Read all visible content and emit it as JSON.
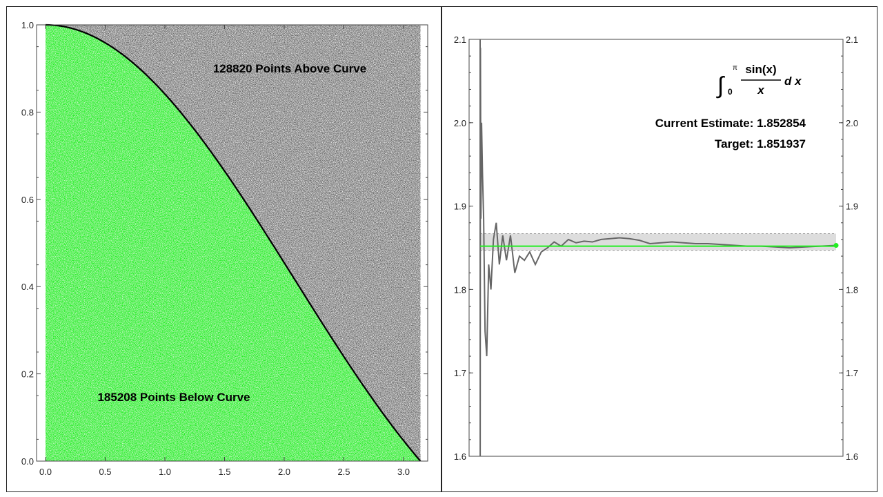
{
  "chart_data": [
    {
      "type": "scatter",
      "function": "sin(x)/x",
      "xlim": [
        0,
        3.14159
      ],
      "ylim": [
        0,
        1
      ],
      "xticks": [
        "0.0",
        "0.5",
        "1.0",
        "1.5",
        "2.0",
        "2.5",
        "3.0"
      ],
      "yticks": [
        "0.0",
        "0.2",
        "0.4",
        "0.6",
        "0.8",
        "1.0"
      ],
      "above_label": "128820 Points Above Curve",
      "below_label": "185208 Points Below Curve",
      "colors": {
        "above": "#6e6e6e",
        "below": "#22ee22",
        "curve": "#000000"
      }
    },
    {
      "type": "line",
      "ylim": [
        1.6,
        2.1
      ],
      "yticks": [
        "1.6",
        "1.7",
        "1.8",
        "1.9",
        "2.0",
        "2.1"
      ],
      "formula": {
        "integral_upper": "π",
        "integral_lower": "0",
        "numerator": "sin(x)",
        "denominator": "x",
        "differential": "d x"
      },
      "estimate_label": "Current Estimate: 1.852854",
      "target_label": "Target: 1.851937",
      "target": 1.851937,
      "current_estimate": 1.852854,
      "band": [
        1.847,
        1.867
      ],
      "series": [
        2.3,
        1.55,
        2.09,
        1.885,
        2.0,
        1.94,
        1.885,
        1.75,
        1.72,
        1.83,
        1.8,
        1.86,
        1.88,
        1.83,
        1.865,
        1.835,
        1.865,
        1.82,
        1.84,
        1.835,
        1.845,
        1.83,
        1.845,
        1.85,
        1.857,
        1.852,
        1.86,
        1.856,
        1.858,
        1.857,
        1.86,
        1.861,
        1.862,
        1.861,
        1.859,
        1.855,
        1.856,
        1.857,
        1.856,
        1.855,
        1.855,
        1.854,
        1.853,
        1.852,
        1.852,
        1.851,
        1.85,
        1.851,
        1.852,
        1.8529
      ],
      "colors": {
        "series": "#666666",
        "target": "#22ee22",
        "band": "#dddddd"
      }
    }
  ]
}
